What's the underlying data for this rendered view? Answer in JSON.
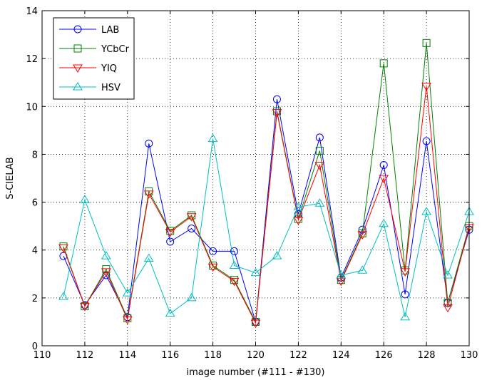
{
  "chart_data": {
    "type": "line",
    "xlabel": "image number (#111 - #130)",
    "ylabel": "S-CIELAB",
    "xlim": [
      110,
      130
    ],
    "ylim": [
      0,
      14
    ],
    "xticks": [
      110,
      112,
      114,
      116,
      118,
      120,
      122,
      124,
      126,
      128,
      130
    ],
    "yticks": [
      0,
      2,
      4,
      6,
      8,
      10,
      12,
      14
    ],
    "grid": true,
    "legend_position": "top-left",
    "x": [
      111,
      112,
      113,
      114,
      115,
      116,
      117,
      118,
      119,
      120,
      121,
      122,
      123,
      124,
      125,
      126,
      127,
      128,
      129,
      130
    ],
    "series": [
      {
        "name": "LAB",
        "color": "#0000ff",
        "marker": "circle",
        "values": [
          3.75,
          1.7,
          2.95,
          1.2,
          8.45,
          4.35,
          4.9,
          3.95,
          3.95,
          1.0,
          10.3,
          5.5,
          8.7,
          2.85,
          4.85,
          7.55,
          2.15,
          8.55,
          1.8,
          4.85
        ]
      },
      {
        "name": "YCbCr",
        "color": "#008000",
        "marker": "square",
        "values": [
          4.15,
          1.65,
          3.2,
          1.15,
          6.45,
          4.8,
          5.45,
          3.35,
          2.75,
          1.0,
          9.8,
          5.3,
          8.15,
          2.75,
          4.7,
          11.8,
          3.15,
          12.65,
          1.8,
          5.0
        ]
      },
      {
        "name": "YIQ",
        "color": "#ff0000",
        "marker": "triangle-down",
        "values": [
          4.1,
          1.65,
          3.1,
          1.1,
          6.35,
          4.75,
          5.4,
          3.3,
          2.7,
          0.95,
          9.75,
          5.25,
          7.55,
          2.7,
          4.65,
          7.0,
          3.1,
          10.85,
          1.6,
          4.95
        ]
      },
      {
        "name": "HSV",
        "color": "#00bfbf",
        "marker": "triangle-up",
        "values": [
          2.05,
          6.1,
          3.75,
          2.2,
          3.65,
          1.35,
          2.0,
          8.65,
          3.35,
          3.05,
          3.75,
          5.8,
          5.95,
          2.95,
          3.15,
          5.1,
          1.2,
          5.6,
          2.95,
          5.6
        ]
      }
    ]
  }
}
